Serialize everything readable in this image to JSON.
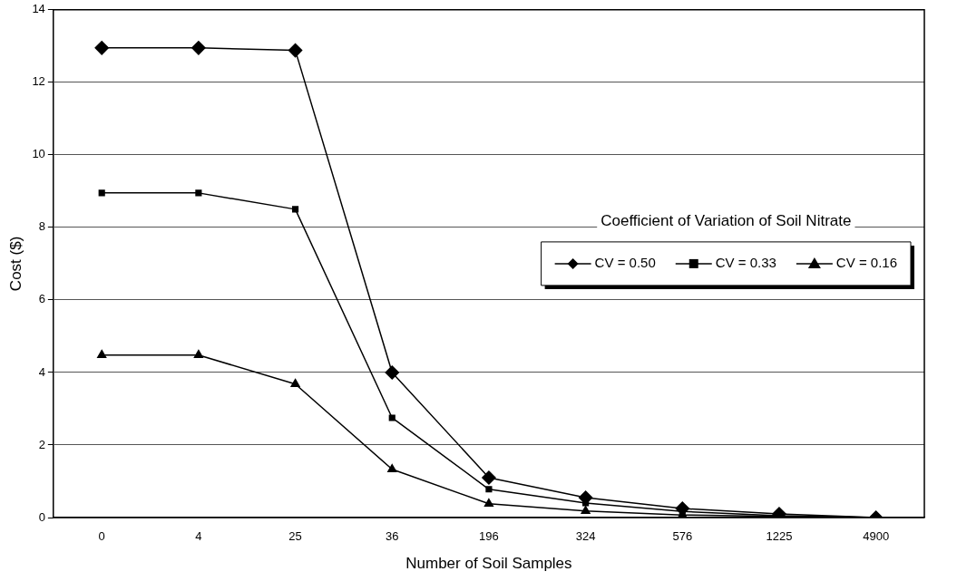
{
  "chart_data": {
    "type": "line",
    "xlabel": "Number of Soil Samples",
    "ylabel": "Cost ($)",
    "legend_title": "Coefficient of Variation of Soil Nitrate",
    "categories": [
      "0",
      "4",
      "25",
      "36",
      "196",
      "324",
      "576",
      "1225",
      "4900"
    ],
    "series": [
      {
        "name": "CV = 0.50",
        "color": "#000000",
        "marker": "diamond",
        "values": [
          12.95,
          12.95,
          12.88,
          4.0,
          1.1,
          0.55,
          0.25,
          0.1,
          0
        ]
      },
      {
        "name": "CV = 0.33",
        "color": "#000000",
        "marker": "square",
        "values": [
          8.95,
          8.95,
          8.5,
          2.75,
          0.78,
          0.4,
          0.17,
          0.05,
          0
        ]
      },
      {
        "name": "CV = 0.16",
        "color": "#000000",
        "marker": "triangle",
        "values": [
          4.48,
          4.48,
          3.68,
          1.33,
          0.38,
          0.18,
          0.07,
          0.03,
          0
        ]
      }
    ],
    "ylim": [
      0,
      14
    ],
    "yticks": [
      0,
      2,
      4,
      6,
      8,
      10,
      12,
      14
    ],
    "grid": "y",
    "legend": "right",
    "line_style": "solid"
  }
}
